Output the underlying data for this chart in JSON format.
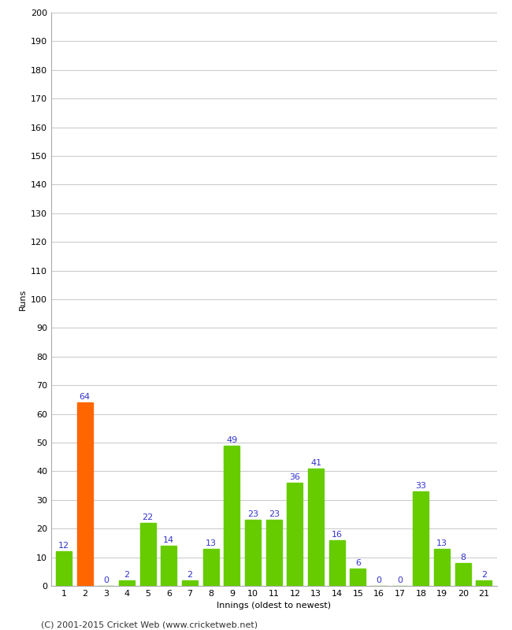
{
  "xlabel": "Innings (oldest to newest)",
  "ylabel": "Runs",
  "categories": [
    1,
    2,
    3,
    4,
    5,
    6,
    7,
    8,
    9,
    10,
    11,
    12,
    13,
    14,
    15,
    16,
    17,
    18,
    19,
    20,
    21
  ],
  "values": [
    12,
    64,
    0,
    2,
    22,
    14,
    2,
    13,
    49,
    23,
    23,
    36,
    41,
    16,
    6,
    0,
    0,
    33,
    13,
    8,
    2
  ],
  "bar_colors": [
    "#66cc00",
    "#ff6600",
    "#66cc00",
    "#66cc00",
    "#66cc00",
    "#66cc00",
    "#66cc00",
    "#66cc00",
    "#66cc00",
    "#66cc00",
    "#66cc00",
    "#66cc00",
    "#66cc00",
    "#66cc00",
    "#66cc00",
    "#66cc00",
    "#66cc00",
    "#66cc00",
    "#66cc00",
    "#66cc00",
    "#66cc00"
  ],
  "label_color": "#3333cc",
  "ylim": [
    0,
    200
  ],
  "yticks": [
    0,
    10,
    20,
    30,
    40,
    50,
    60,
    70,
    80,
    90,
    100,
    110,
    120,
    130,
    140,
    150,
    160,
    170,
    180,
    190,
    200
  ],
  "background_color": "#ffffff",
  "grid_color": "#cccccc",
  "footer": "(C) 2001-2015 Cricket Web (www.cricketweb.net)",
  "label_fontsize": 8,
  "axis_label_fontsize": 8,
  "ytick_fontsize": 8,
  "xtick_fontsize": 8,
  "footer_fontsize": 8,
  "bar_width": 0.75
}
